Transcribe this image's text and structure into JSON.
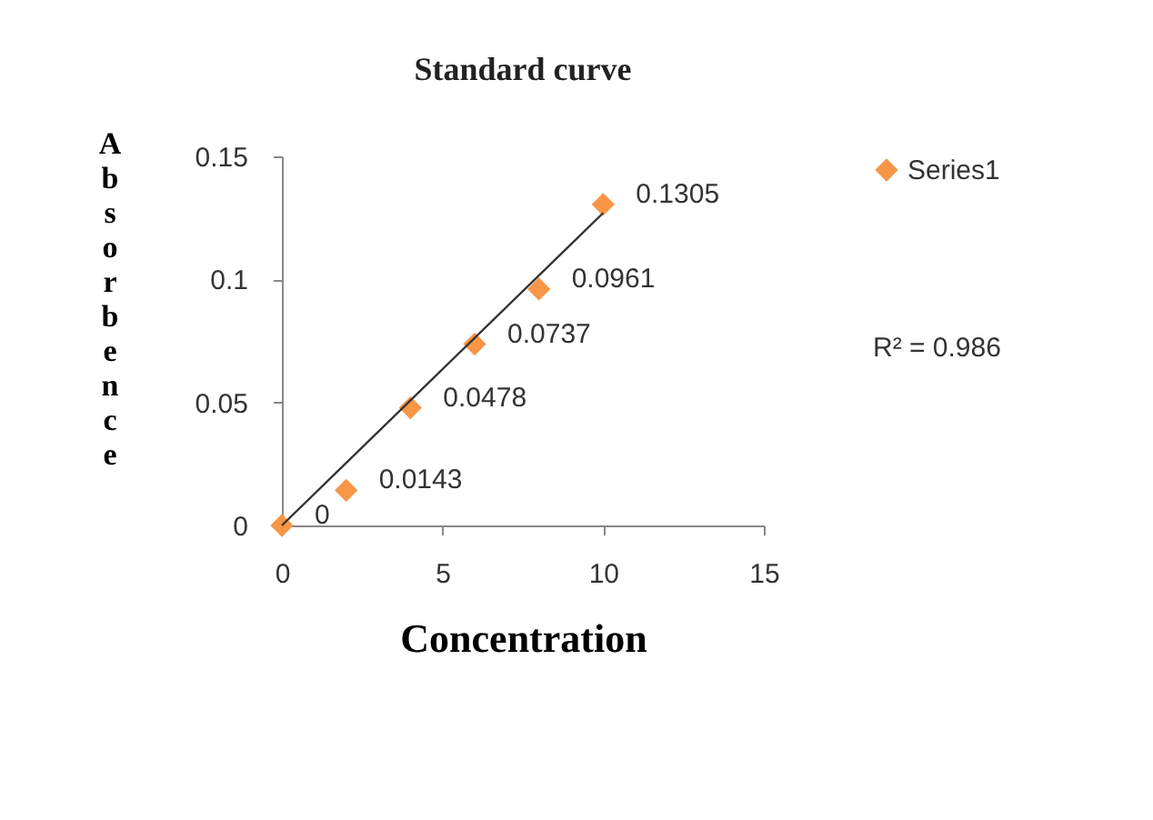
{
  "chart_data": {
    "type": "scatter",
    "title": "Standard curve",
    "xlabel": "Concentration",
    "ylabel": "Absorbence",
    "x": [
      0,
      2,
      4,
      6,
      8,
      10
    ],
    "series": [
      {
        "name": "Series1",
        "color": "#f79646",
        "values": [
          0,
          0.0143,
          0.0478,
          0.0737,
          0.0961,
          0.1305
        ],
        "value_labels": [
          "0",
          "0.0143",
          "0.0478",
          "0.0737",
          "0.0961",
          "0.1305"
        ]
      },
      {
        "type": "line",
        "color": "#333333",
        "x": [
          0,
          10
        ],
        "values": [
          0,
          0.127
        ],
        "marker": "none"
      }
    ],
    "xlim": [
      0,
      15
    ],
    "xticks": [
      0,
      5,
      10,
      15
    ],
    "ylim": [
      0,
      0.15
    ],
    "yticks": [
      0,
      0.05,
      0.1,
      0.15
    ],
    "annotations": [
      "R² = 0.986"
    ],
    "grid": false,
    "legend": "right",
    "marker": "diamond"
  }
}
